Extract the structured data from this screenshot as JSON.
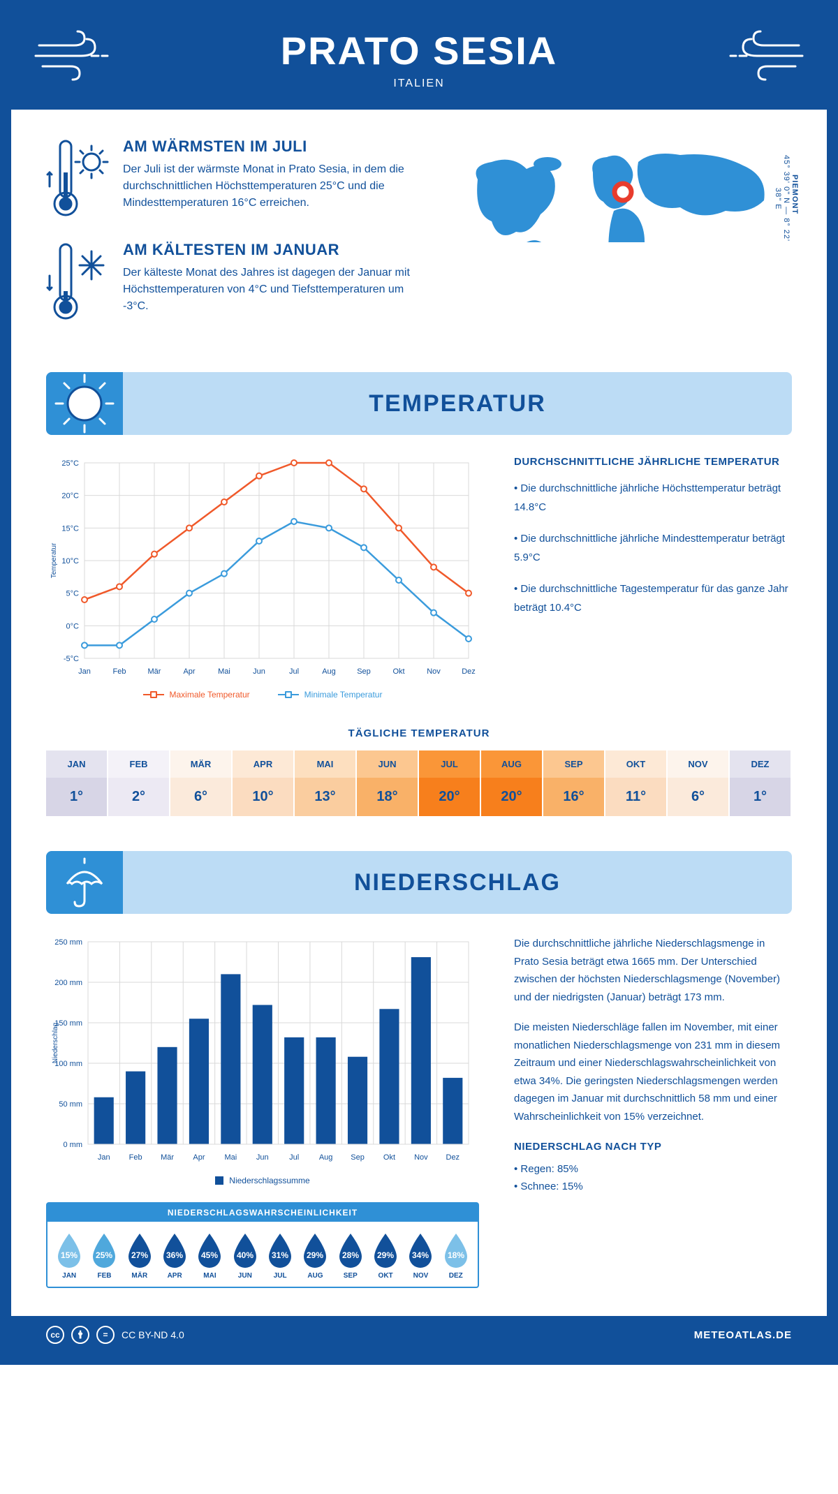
{
  "header": {
    "title": "PRATO SESIA",
    "subtitle": "ITALIEN"
  },
  "location": {
    "region": "PIEMONT",
    "coords": "45° 39' 0\" N — 8° 22' 38\" E",
    "marker_color": "#e83c2d",
    "map_fill": "#2f90d6"
  },
  "intro": {
    "warm": {
      "title": "AM WÄRMSTEN IM JULI",
      "body": "Der Juli ist der wärmste Monat in Prato Sesia, in dem die durchschnittlichen Höchsttemperaturen 25°C und die Mindesttemperaturen 16°C erreichen."
    },
    "cold": {
      "title": "AM KÄLTESTEN IM JANUAR",
      "body": "Der kälteste Monat des Jahres ist dagegen der Januar mit Höchsttemperaturen von 4°C und Tiefsttemperaturen um -3°C."
    }
  },
  "sections": {
    "temp_title": "TEMPERATUR",
    "precip_title": "NIEDERSCHLAG"
  },
  "temperature_chart": {
    "type": "line",
    "months": [
      "Jan",
      "Feb",
      "Mär",
      "Apr",
      "Mai",
      "Jun",
      "Jul",
      "Aug",
      "Sep",
      "Okt",
      "Nov",
      "Dez"
    ],
    "max_values": [
      4,
      6,
      11,
      15,
      19,
      23,
      25,
      25,
      21,
      15,
      9,
      5
    ],
    "min_values": [
      -3,
      -3,
      1,
      5,
      8,
      13,
      16,
      15,
      12,
      7,
      2,
      -2
    ],
    "max_color": "#f0592a",
    "min_color": "#3a9bdc",
    "grid_color": "#d9d9d9",
    "y_axis_label": "Temperatur",
    "ylim": [
      -5,
      25
    ],
    "ytick_step": 5,
    "legend_max": "Maximale Temperatur",
    "legend_min": "Minimale Temperatur"
  },
  "annual_temp": {
    "title": "DURCHSCHNITTLICHE JÄHRLICHE TEMPERATUR",
    "l1": "• Die durchschnittliche jährliche Höchsttemperatur beträgt 14.8°C",
    "l2": "• Die durchschnittliche jährliche Mindesttemperatur beträgt 5.9°C",
    "l3": "• Die durchschnittliche Tagestemperatur für das ganze Jahr beträgt 10.4°C"
  },
  "daily_temp": {
    "title": "TÄGLICHE TEMPERATUR",
    "months": [
      "JAN",
      "FEB",
      "MÄR",
      "APR",
      "MAI",
      "JUN",
      "JUL",
      "AUG",
      "SEP",
      "OKT",
      "NOV",
      "DEZ"
    ],
    "values": [
      "1°",
      "2°",
      "6°",
      "10°",
      "13°",
      "18°",
      "20°",
      "20°",
      "16°",
      "11°",
      "6°",
      "1°"
    ],
    "month_colors": [
      "#e4e3ef",
      "#f4f2f8",
      "#fdf4ec",
      "#fde9d6",
      "#fddfbf",
      "#fcc790",
      "#fa9638",
      "#fa9638",
      "#fcc790",
      "#fde9d6",
      "#fdf4ec",
      "#e4e3ef"
    ],
    "val_colors": [
      "#d7d5e6",
      "#ece9f3",
      "#fbeadb",
      "#fbdcc0",
      "#facd9f",
      "#f9b168",
      "#f77f1c",
      "#f77f1c",
      "#f9b168",
      "#fbdcc0",
      "#fbeadb",
      "#d7d5e6"
    ],
    "text_color": "#11509a"
  },
  "precip_chart": {
    "type": "bar",
    "months": [
      "Jan",
      "Feb",
      "Mär",
      "Apr",
      "Mai",
      "Jun",
      "Jul",
      "Aug",
      "Sep",
      "Okt",
      "Nov",
      "Dez"
    ],
    "values": [
      58,
      90,
      120,
      155,
      210,
      172,
      132,
      132,
      108,
      167,
      231,
      82
    ],
    "bar_color": "#11509a",
    "grid_color": "#d9d9d9",
    "y_axis_label": "Niederschlag",
    "legend": "Niederschlagssumme",
    "ylim": [
      0,
      250
    ],
    "ytick_step": 50
  },
  "precip_text": {
    "p1": "Die durchschnittliche jährliche Niederschlagsmenge in Prato Sesia beträgt etwa 1665 mm. Der Unterschied zwischen der höchsten Niederschlagsmenge (November) und der niedrigsten (Januar) beträgt 173 mm.",
    "p2": "Die meisten Niederschläge fallen im November, mit einer monatlichen Niederschlagsmenge von 231 mm in diesem Zeitraum und einer Niederschlagswahrscheinlichkeit von etwa 34%. Die geringsten Niederschlagsmengen werden dagegen im Januar mit durchschnittlich 58 mm und einer Wahrscheinlichkeit von 15% verzeichnet.",
    "type_title": "NIEDERSCHLAG NACH TYP",
    "type_rain": "• Regen: 85%",
    "type_snow": "• Schnee: 15%"
  },
  "precip_prob": {
    "title": "NIEDERSCHLAGSWAHRSCHEINLICHKEIT",
    "months": [
      "JAN",
      "FEB",
      "MÄR",
      "APR",
      "MAI",
      "JUN",
      "JUL",
      "AUG",
      "SEP",
      "OKT",
      "NOV",
      "DEZ"
    ],
    "values": [
      "15%",
      "25%",
      "27%",
      "36%",
      "45%",
      "40%",
      "31%",
      "29%",
      "28%",
      "29%",
      "34%",
      "18%"
    ],
    "colors": [
      "#7cc0e8",
      "#4fa8dc",
      "#11509a",
      "#11509a",
      "#11509a",
      "#11509a",
      "#11509a",
      "#11509a",
      "#11509a",
      "#11509a",
      "#11509a",
      "#7cc0e8"
    ]
  },
  "footer": {
    "license": "CC BY-ND 4.0",
    "site": "METEOATLAS.DE"
  },
  "colors": {
    "primary": "#11509a",
    "banner_bg": "#bcdcf5",
    "banner_accent": "#2f90d6"
  }
}
